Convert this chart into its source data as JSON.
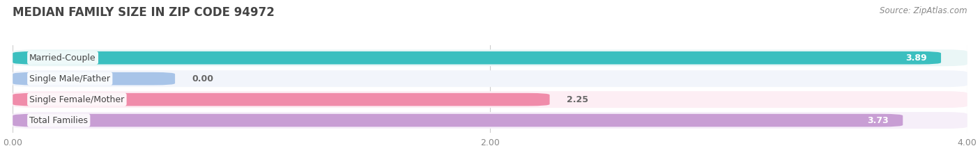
{
  "title": "MEDIAN FAMILY SIZE IN ZIP CODE 94972",
  "source": "Source: ZipAtlas.com",
  "categories": [
    "Married-Couple",
    "Single Male/Father",
    "Single Female/Mother",
    "Total Families"
  ],
  "values": [
    3.89,
    0.0,
    2.25,
    3.73
  ],
  "bar_colors": [
    "#3bbfbf",
    "#a8c4e8",
    "#f08caa",
    "#c89ed4"
  ],
  "bar_bg_colors": [
    "#eaf6f6",
    "#f2f5fb",
    "#fdeef4",
    "#f6eff9"
  ],
  "xlim": [
    0,
    4.0
  ],
  "xticks": [
    0.0,
    2.0,
    4.0
  ],
  "xtick_labels": [
    "0.00",
    "2.00",
    "4.00"
  ],
  "value_labels": [
    "3.89",
    "0.00",
    "2.25",
    "3.73"
  ],
  "background_color": "#ffffff",
  "title_color": "#444444",
  "title_fontsize": 12,
  "label_fontsize": 9,
  "value_fontsize": 9,
  "tick_fontsize": 9,
  "source_fontsize": 8.5,
  "single_male_bar_width": 0.68
}
